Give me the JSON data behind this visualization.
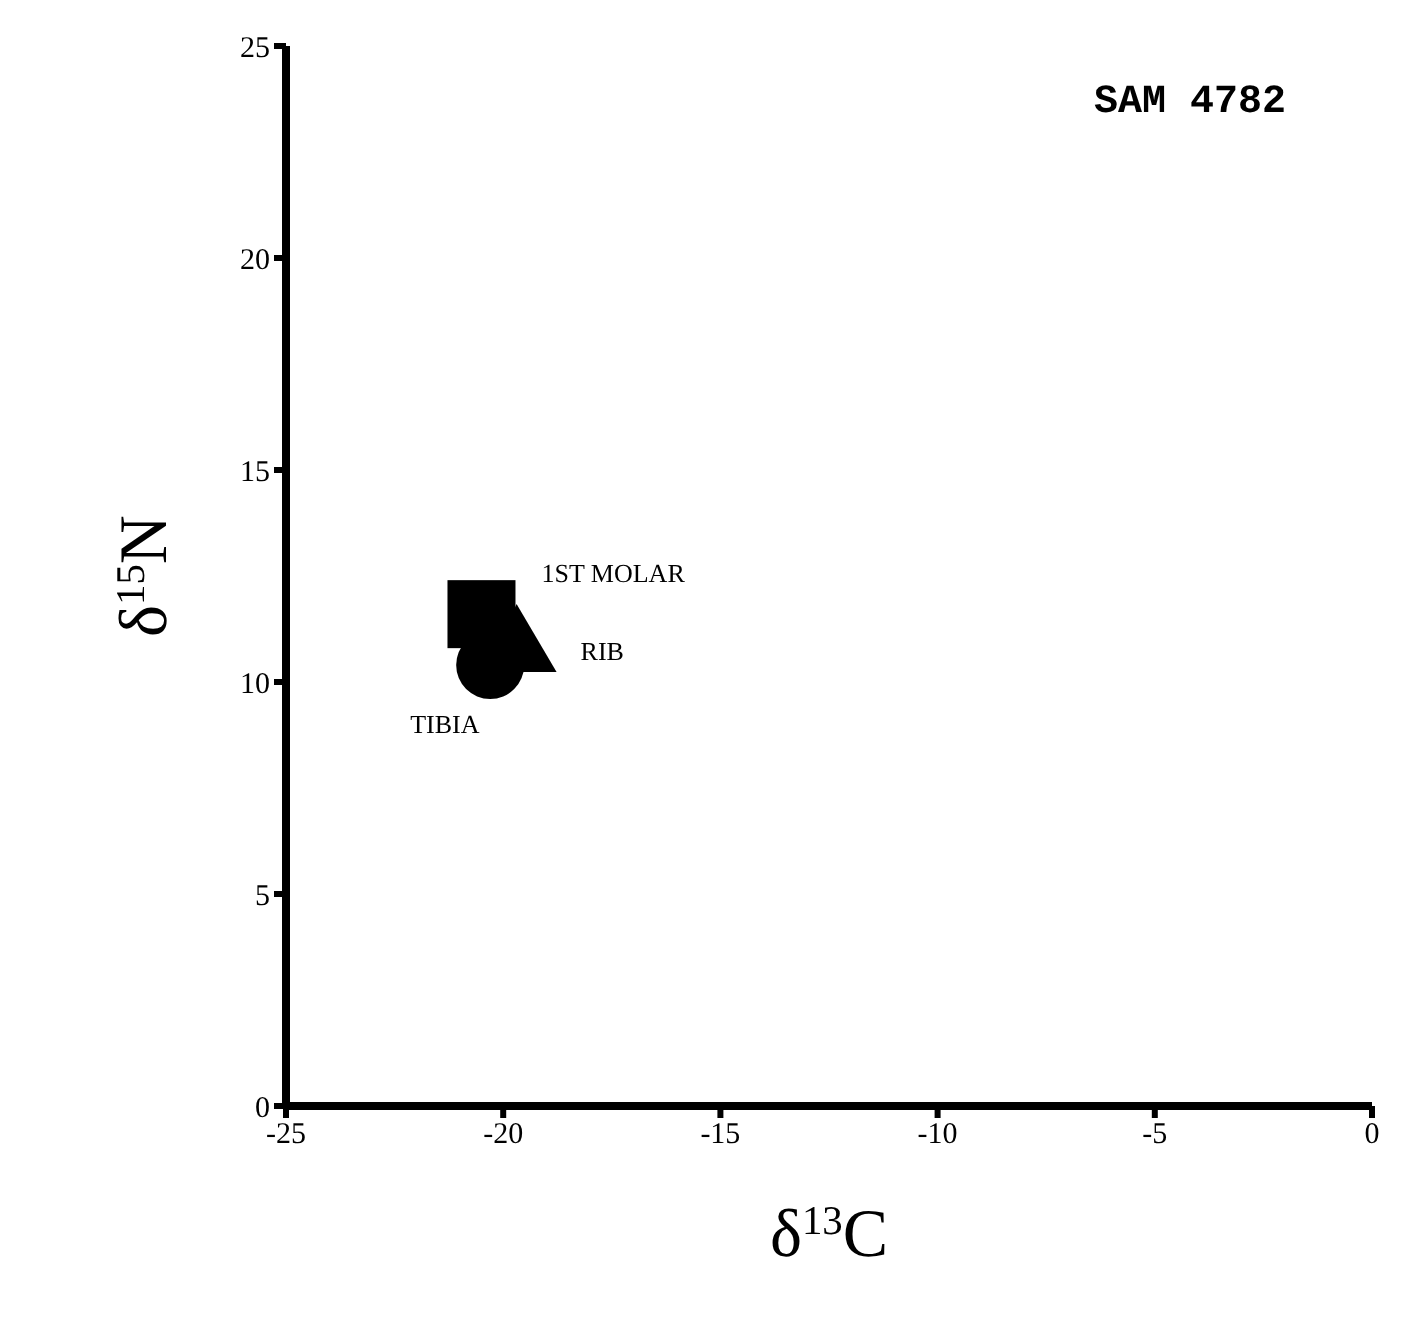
{
  "chart_data": {
    "type": "scatter",
    "title": "SAM 4782",
    "xlabel": "δ$^{13}$C",
    "ylabel": "δ$^{15}$N",
    "xlim": [
      -25,
      0
    ],
    "xticks": [
      -25,
      -20,
      -15,
      -10,
      -5,
      0
    ],
    "ylim": [
      0,
      25
    ],
    "yticks": [
      0,
      5,
      10,
      15,
      20,
      25
    ],
    "grid": false,
    "legend": false,
    "series": [
      {
        "name": "1ST MOLAR",
        "color": "#000000",
        "marker": "square",
        "x": [
          -20.5
        ],
        "values": [
          11.6
        ]
      },
      {
        "name": "RIB",
        "color": "#000000",
        "marker": "triangle",
        "x": [
          -19.6
        ],
        "values": [
          10.8
        ]
      },
      {
        "name": "TIBIA",
        "color": "#000000",
        "marker": "circle",
        "x": [
          -20.3
        ],
        "values": [
          10.4
        ]
      }
    ]
  }
}
